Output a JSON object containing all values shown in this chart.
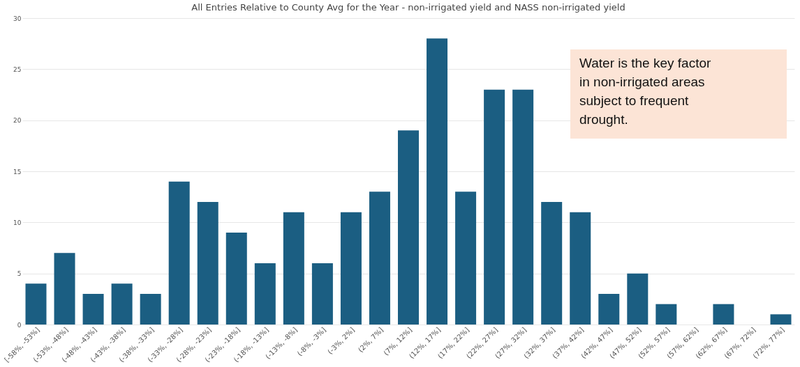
{
  "chart_data": {
    "type": "bar",
    "title": "All Entries Relative to County Avg for the Year - non-irrigated yield and NASS non-irrigated yield",
    "categories": [
      "[-58%, -53%]",
      "(-53%, -48%]",
      "(-48%, -43%]",
      "(-43%, -38%]",
      "(-38%, -33%]",
      "(-33%, -28%]",
      "(-28%, -23%]",
      "(-23%, -18%]",
      "(-18%, -13%]",
      "(-13%, -8%]",
      "(-8%, -3%]",
      "(-3%, 2%]",
      "(2%, 7%]",
      "(7%, 12%]",
      "(12%, 17%]",
      "(17%, 22%]",
      "(22%, 27%]",
      "(27%, 32%]",
      "(32%, 37%]",
      "(37%, 42%]",
      "(42%, 47%]",
      "(47%, 52%]",
      "(52%, 57%]",
      "(57%, 62%]",
      "(62%, 67%]",
      "(67%, 72%]",
      "(72%, 77%]"
    ],
    "values": [
      4,
      7,
      3,
      4,
      3,
      14,
      12,
      9,
      6,
      11,
      6,
      11,
      13,
      19,
      28,
      13,
      23,
      23,
      12,
      11,
      3,
      5,
      2,
      0,
      2,
      0,
      1
    ],
    "color": "#1b5e82",
    "ylim": [
      0,
      30
    ],
    "yticks": [
      0,
      5,
      10,
      15,
      20,
      25,
      30
    ],
    "grid": "y",
    "annotations": [
      "Water is the key factor in non-irrigated areas subject to frequent drought."
    ]
  }
}
